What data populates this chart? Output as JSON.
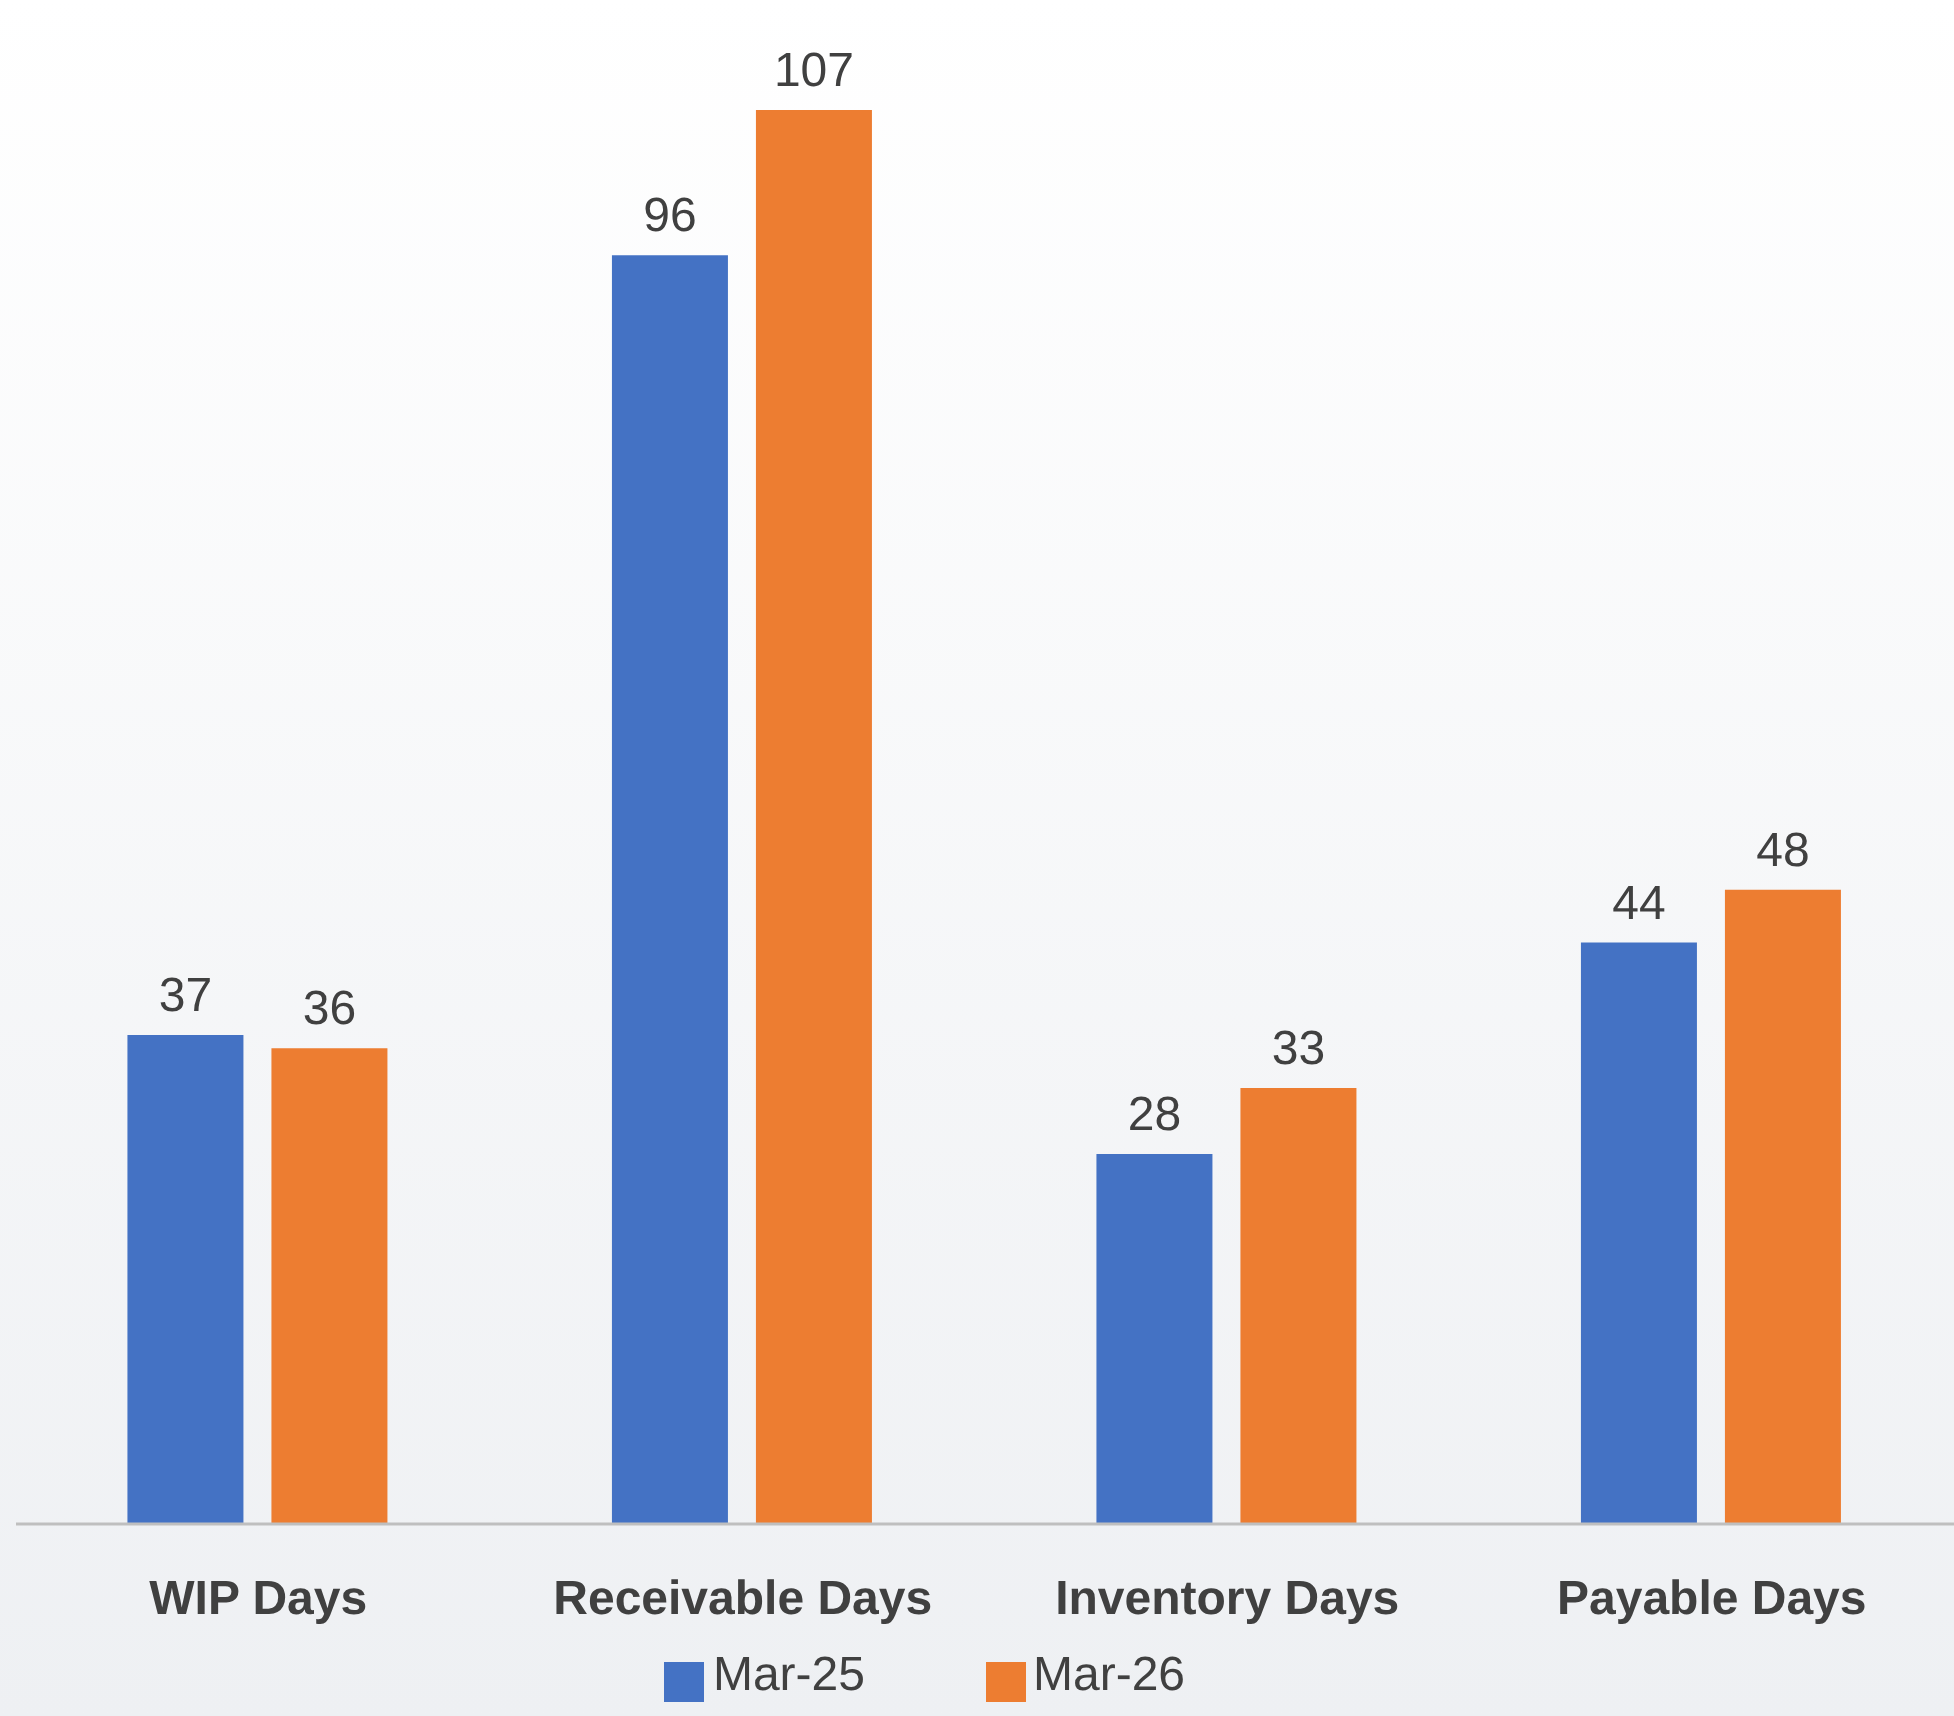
{
  "chart_data": {
    "type": "bar",
    "categories": [
      "WIP Days",
      "Receivable Days",
      "Inventory Days",
      "Payable Days"
    ],
    "series": [
      {
        "name": "Mar-25",
        "color": "#4472c4",
        "values": [
          37,
          96,
          28,
          44
        ]
      },
      {
        "name": "Mar-26",
        "color": "#ed7d31",
        "values": [
          36,
          107,
          33,
          48
        ]
      }
    ],
    "data_labels": true,
    "legend": "bottom",
    "grid": false,
    "tick_labels": "x"
  }
}
